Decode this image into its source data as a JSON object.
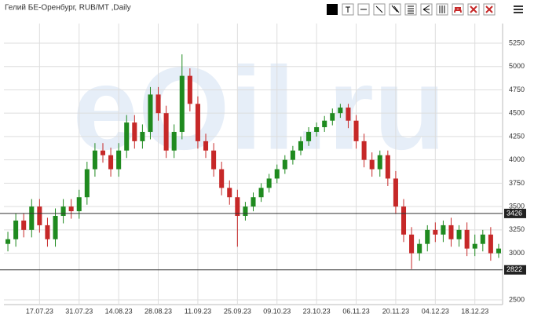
{
  "chart_data": {
    "type": "candlestick",
    "title": "Гелий БЕ-Оренбург, RUB/MT ,Daily",
    "watermark": "eOil.ru",
    "categories": [
      null,
      null,
      null,
      null,
      "17.07.23",
      null,
      null,
      null,
      null,
      "31.07.23",
      null,
      null,
      null,
      null,
      "14.08.23",
      null,
      null,
      null,
      null,
      "28.08.23",
      null,
      null,
      null,
      null,
      "11.09.23",
      null,
      null,
      null,
      null,
      "25.09.23",
      null,
      null,
      null,
      null,
      "09.10.23",
      null,
      null,
      null,
      null,
      "23.10.23",
      null,
      null,
      null,
      null,
      "06.11.23",
      null,
      null,
      null,
      null,
      "20.11.23",
      null,
      null,
      null,
      null,
      "04.12.23",
      null,
      null,
      null,
      null,
      "18.12.23",
      null,
      null,
      null
    ],
    "open": [
      3100,
      3150,
      3350,
      3250,
      3500,
      3300,
      3150,
      3400,
      3500,
      3450,
      3600,
      3900,
      4100,
      4050,
      3900,
      4100,
      4400,
      4200,
      4300,
      4700,
      4500,
      4100,
      4300,
      4900,
      4600,
      4200,
      4100,
      3900,
      3700,
      3600,
      3400,
      3500,
      3600,
      3700,
      3800,
      3900,
      4000,
      4100,
      4200,
      4300,
      4350,
      4420,
      4500,
      4560,
      4420,
      4200,
      4000,
      3900,
      4050,
      3800,
      3500,
      3200,
      3000,
      3100,
      3250,
      3200,
      3300,
      3150,
      3250,
      3050,
      3100,
      3200,
      3000
    ],
    "high": [
      3230,
      3430,
      3430,
      3580,
      3580,
      3380,
      3480,
      3580,
      3580,
      3680,
      3980,
      4180,
      4180,
      4130,
      4180,
      4480,
      4480,
      4380,
      4780,
      4780,
      4580,
      4380,
      5130,
      4980,
      4680,
      4280,
      4180,
      3980,
      3780,
      3680,
      3550,
      3650,
      3750,
      3850,
      3950,
      4050,
      4150,
      4250,
      4350,
      4400,
      4470,
      4550,
      4600,
      4600,
      4480,
      4280,
      4080,
      4100,
      4100,
      3880,
      3580,
      3280,
      3150,
      3300,
      3330,
      3350,
      3380,
      3300,
      3330,
      3200,
      3250,
      3280,
      3100
    ],
    "low": [
      3020,
      3070,
      3170,
      3170,
      3220,
      3070,
      3070,
      3320,
      3370,
      3370,
      3520,
      3820,
      3970,
      3820,
      3820,
      4020,
      4120,
      4120,
      4220,
      4420,
      4020,
      4020,
      4220,
      4520,
      4120,
      4020,
      3820,
      3620,
      3520,
      3070,
      3350,
      3450,
      3550,
      3650,
      3750,
      3850,
      3950,
      4050,
      4150,
      4250,
      4300,
      4370,
      4450,
      4340,
      4120,
      3920,
      3820,
      3820,
      3720,
      3420,
      3120,
      2830,
      2920,
      3020,
      3120,
      3120,
      3070,
      3070,
      2970,
      2970,
      3020,
      2920,
      2950
    ],
    "close": [
      3150,
      3350,
      3250,
      3500,
      3300,
      3150,
      3400,
      3500,
      3450,
      3600,
      3900,
      4100,
      4050,
      3900,
      4100,
      4400,
      4200,
      4300,
      4700,
      4500,
      4100,
      4300,
      4900,
      4600,
      4200,
      4100,
      3900,
      3700,
      3600,
      3400,
      3500,
      3600,
      3700,
      3800,
      3900,
      4000,
      4100,
      4200,
      4300,
      4350,
      4420,
      4500,
      4560,
      4420,
      4200,
      4000,
      3900,
      4050,
      3800,
      3500,
      3200,
      3000,
      3100,
      3250,
      3200,
      3300,
      3150,
      3250,
      3050,
      3100,
      3200,
      3000,
      3050
    ],
    "up_color": "#1f8a1f",
    "down_color": "#c62828",
    "levels": [
      3426,
      2822
    ],
    "ylim": [
      2450,
      5460
    ],
    "yticks": [
      2500,
      3000,
      3250,
      3500,
      3750,
      4000,
      4250,
      4500,
      4750,
      5000,
      5250
    ],
    "grid": true
  }
}
